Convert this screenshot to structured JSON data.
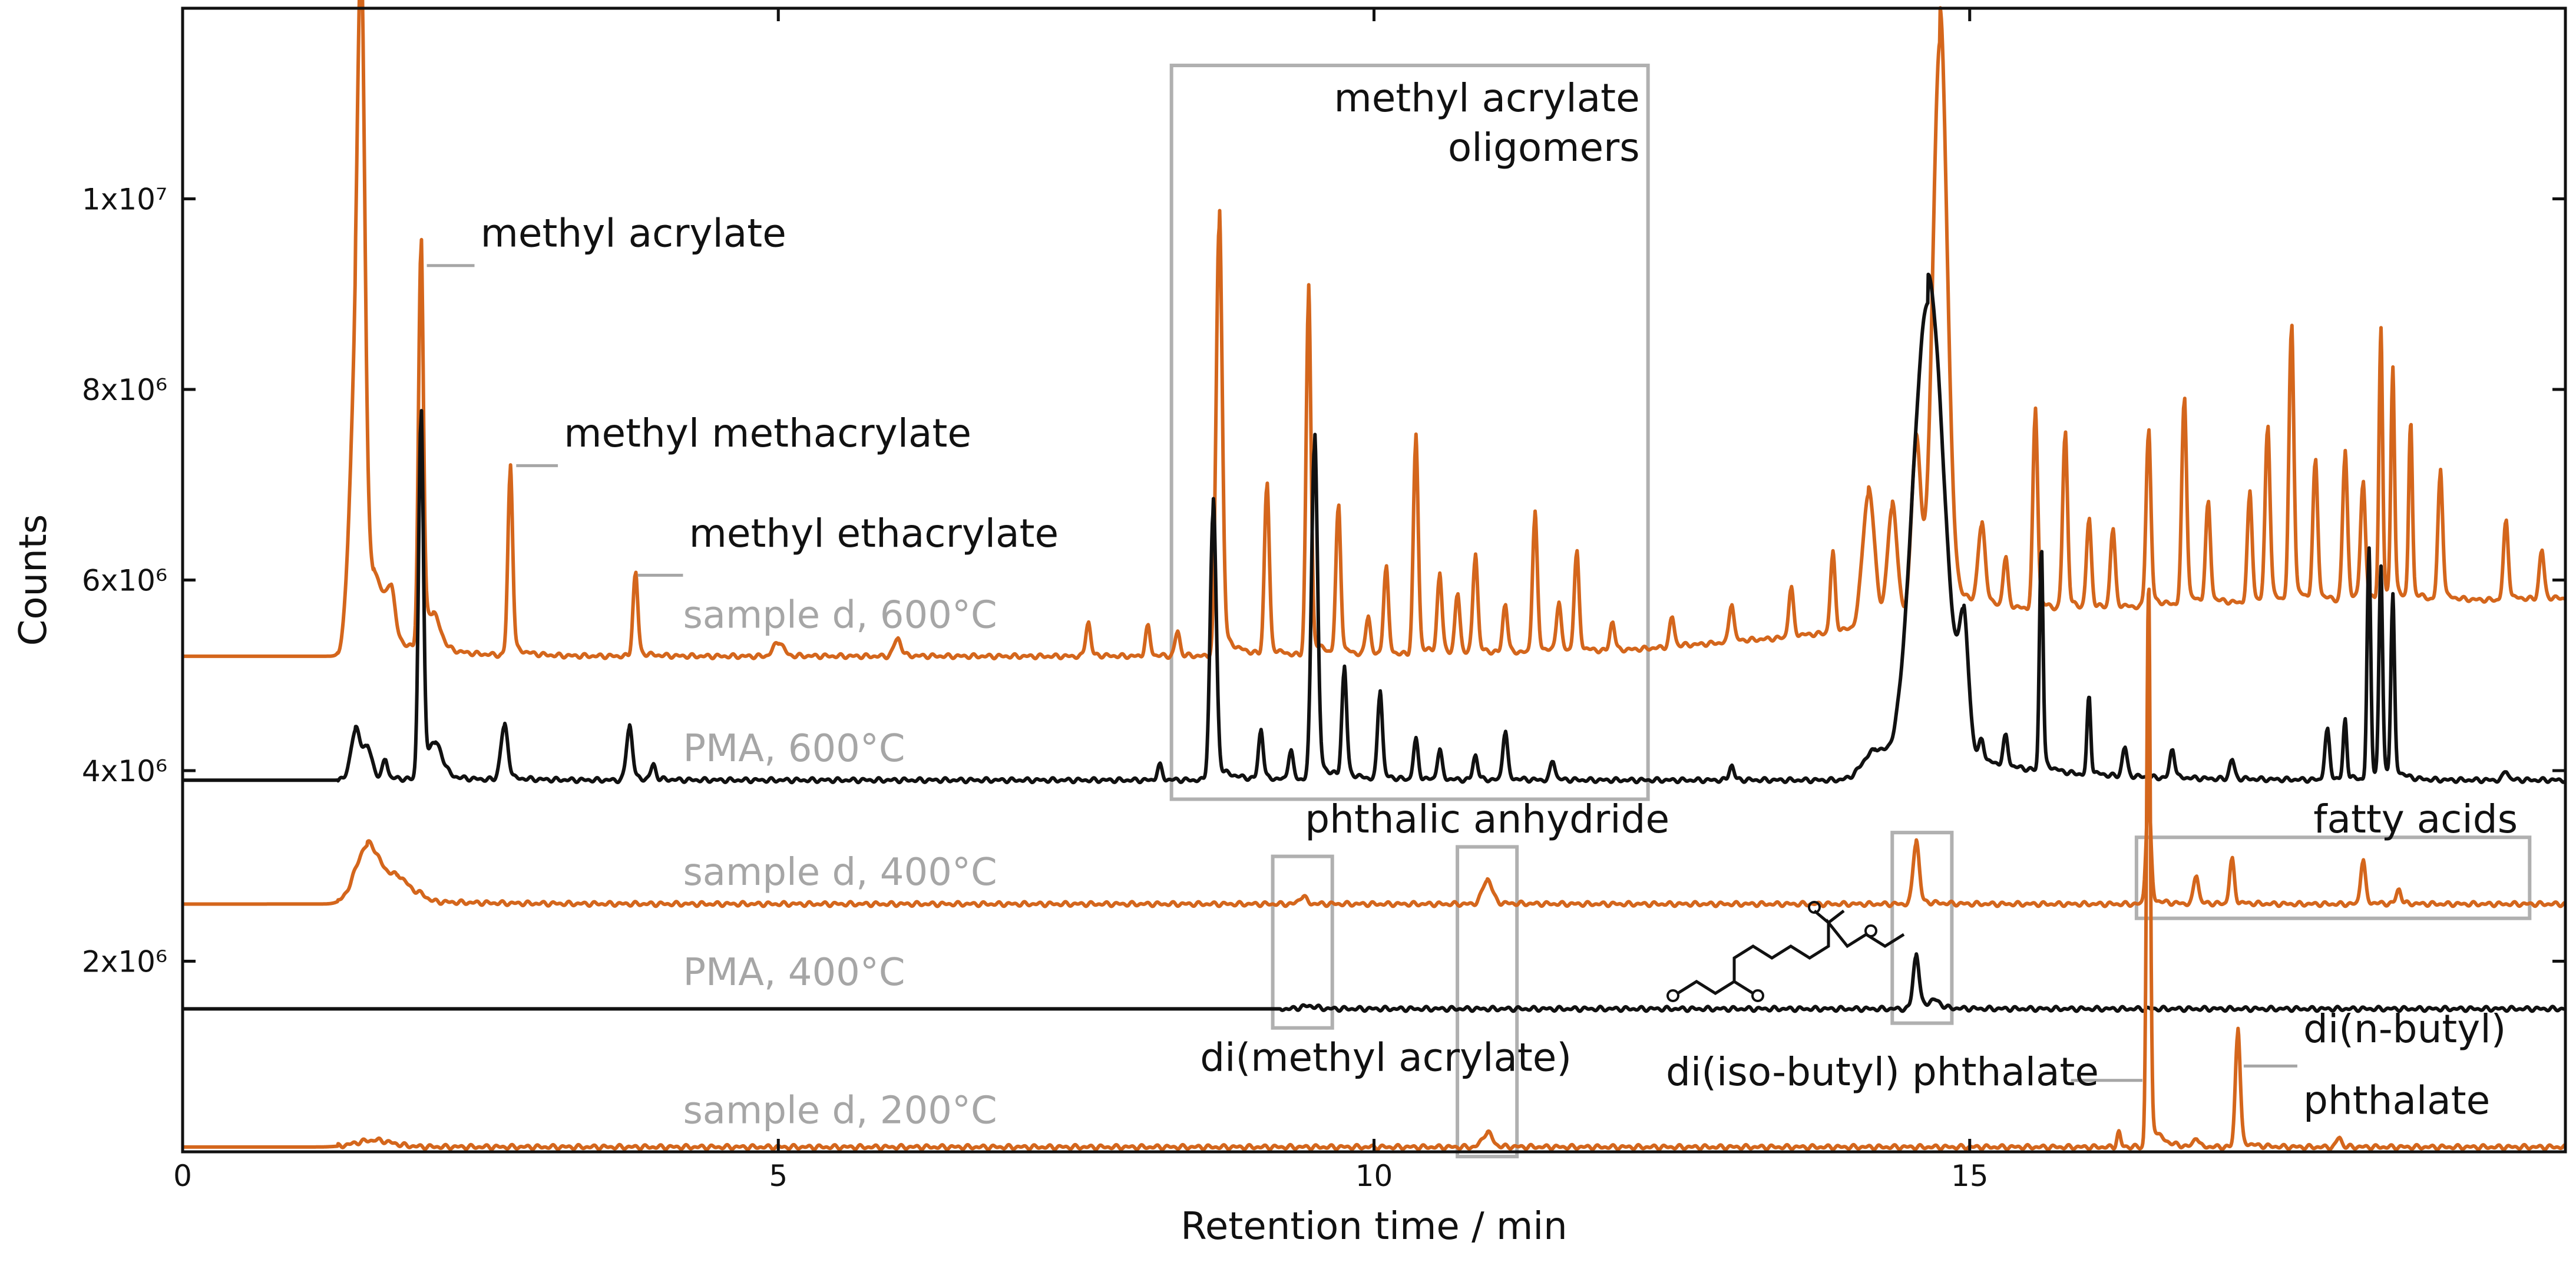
{
  "chart_data": {
    "type": "line",
    "xlabel": "Retention time / min",
    "ylabel": "Counts",
    "xlim": [
      0,
      20
    ],
    "ylim": [
      0,
      12000000
    ],
    "x_ticks": [
      0,
      5,
      10,
      15
    ],
    "x_tick_labels": [
      "0",
      "5",
      "10",
      "15"
    ],
    "y_ticks": [
      2000000,
      4000000,
      6000000,
      8000000,
      10000000
    ],
    "y_tick_labels": [
      "2x10⁶",
      "4x10⁶",
      "6x10⁶",
      "8x10⁶",
      "1x10⁷"
    ],
    "colors": {
      "orange": "#d4661c",
      "black": "#111111",
      "gray": "#a6a6a6",
      "box": "#b0b0b0"
    },
    "series": [
      {
        "name": "sample d, 600°C",
        "color": "#d4661c",
        "baseline": 5200000,
        "peaks": [
          [
            1.45,
            2600000,
            0.05
          ],
          [
            1.5,
            5100000,
            0.03
          ],
          [
            1.6,
            600000,
            0.1
          ],
          [
            1.75,
            400000,
            0.03
          ],
          [
            2.0,
            4100000,
            0.02
          ],
          [
            2.1,
            300000,
            0.06
          ],
          [
            2.75,
            1900000,
            0.02
          ],
          [
            3.8,
            850000,
            0.02
          ],
          [
            5.0,
            150000,
            0.04
          ],
          [
            6.0,
            180000,
            0.03
          ],
          [
            7.6,
            350000,
            0.02
          ],
          [
            8.1,
            300000,
            0.02
          ],
          [
            8.35,
            250000,
            0.02
          ],
          [
            8.7,
            4500000,
            0.025
          ],
          [
            9.1,
            1750000,
            0.02
          ],
          [
            9.45,
            3700000,
            0.02
          ],
          [
            9.7,
            1500000,
            0.02
          ],
          [
            9.95,
            400000,
            0.02
          ],
          [
            10.1,
            900000,
            0.02
          ],
          [
            10.35,
            2200000,
            0.02
          ],
          [
            10.55,
            800000,
            0.02
          ],
          [
            10.7,
            600000,
            0.02
          ],
          [
            10.85,
            1000000,
            0.02
          ],
          [
            11.1,
            500000,
            0.02
          ],
          [
            11.35,
            1400000,
            0.02
          ],
          [
            11.55,
            500000,
            0.02
          ],
          [
            11.7,
            1000000,
            0.02
          ],
          [
            12.0,
            300000,
            0.02
          ],
          [
            12.5,
            300000,
            0.02
          ],
          [
            13.0,
            400000,
            0.02
          ],
          [
            13.5,
            500000,
            0.02
          ],
          [
            13.85,
            800000,
            0.02
          ],
          [
            14.15,
            1400000,
            0.05
          ],
          [
            14.35,
            1200000,
            0.04
          ],
          [
            14.55,
            1800000,
            0.04
          ],
          [
            14.75,
            6000000,
            0.06
          ],
          [
            15.1,
            800000,
            0.03
          ],
          [
            15.3,
            500000,
            0.02
          ],
          [
            15.55,
            2000000,
            0.02
          ],
          [
            15.8,
            1800000,
            0.02
          ],
          [
            16.0,
            900000,
            0.02
          ],
          [
            16.2,
            800000,
            0.02
          ],
          [
            16.5,
            1800000,
            0.02
          ],
          [
            16.8,
            2100000,
            0.02
          ],
          [
            17.0,
            1000000,
            0.02
          ],
          [
            17.35,
            1100000,
            0.02
          ],
          [
            17.5,
            1800000,
            0.02
          ],
          [
            17.7,
            2800000,
            0.02
          ],
          [
            17.9,
            1400000,
            0.02
          ],
          [
            18.15,
            1500000,
            0.02
          ],
          [
            18.3,
            1200000,
            0.02
          ],
          [
            18.45,
            2700000,
            0.015
          ],
          [
            18.55,
            2300000,
            0.015
          ],
          [
            18.7,
            1800000,
            0.015
          ],
          [
            18.95,
            1300000,
            0.02
          ],
          [
            19.5,
            800000,
            0.02
          ],
          [
            19.8,
            500000,
            0.02
          ]
        ],
        "drift": [
          [
            0,
            0
          ],
          [
            10,
            0
          ],
          [
            12,
            50000
          ],
          [
            13.5,
            200000
          ],
          [
            15,
            400000
          ],
          [
            17,
            550000
          ],
          [
            20,
            600000
          ]
        ]
      },
      {
        "name": "PMA, 600°C",
        "color": "#111111",
        "baseline": 3900000,
        "peaks": [
          [
            1.45,
            500000,
            0.04
          ],
          [
            1.55,
            300000,
            0.04
          ],
          [
            1.7,
            200000,
            0.02
          ],
          [
            2.0,
            3700000,
            0.02
          ],
          [
            2.12,
            300000,
            0.06
          ],
          [
            2.7,
            550000,
            0.03
          ],
          [
            3.75,
            550000,
            0.025
          ],
          [
            3.95,
            150000,
            0.02
          ],
          [
            8.2,
            150000,
            0.02
          ],
          [
            8.65,
            2800000,
            0.025
          ],
          [
            9.05,
            500000,
            0.02
          ],
          [
            9.3,
            300000,
            0.02
          ],
          [
            9.5,
            3500000,
            0.025
          ],
          [
            9.75,
            1100000,
            0.02
          ],
          [
            10.05,
            900000,
            0.02
          ],
          [
            10.35,
            400000,
            0.02
          ],
          [
            10.55,
            300000,
            0.02
          ],
          [
            10.85,
            250000,
            0.02
          ],
          [
            11.1,
            500000,
            0.02
          ],
          [
            11.5,
            200000,
            0.02
          ],
          [
            13.0,
            150000,
            0.02
          ],
          [
            14.2,
            300000,
            0.1
          ],
          [
            14.65,
            5000000,
            0.13
          ],
          [
            14.95,
            1200000,
            0.04
          ],
          [
            15.1,
            200000,
            0.02
          ],
          [
            15.3,
            300000,
            0.02
          ],
          [
            15.6,
            2300000,
            0.015
          ],
          [
            16.0,
            800000,
            0.015
          ],
          [
            16.3,
            300000,
            0.02
          ],
          [
            16.7,
            300000,
            0.02
          ],
          [
            17.2,
            200000,
            0.02
          ],
          [
            18.0,
            500000,
            0.02
          ],
          [
            18.15,
            600000,
            0.015
          ],
          [
            18.35,
            2300000,
            0.015
          ],
          [
            18.45,
            2100000,
            0.015
          ],
          [
            18.55,
            1800000,
            0.015
          ],
          [
            19.5,
            100000,
            0.02
          ]
        ],
        "drift": [
          [
            0,
            0
          ],
          [
            20,
            0
          ]
        ]
      },
      {
        "name": "sample d, 400°C",
        "color": "#d4661c",
        "baseline": 2600000,
        "peaks": [
          [
            1.55,
            600000,
            0.1
          ],
          [
            1.8,
            250000,
            0.1
          ],
          [
            2.0,
            50000,
            0.05
          ],
          [
            9.4,
            80000,
            0.03
          ],
          [
            10.95,
            250000,
            0.04
          ],
          [
            14.55,
            650000,
            0.025
          ],
          [
            16.5,
            1100000,
            0.02
          ],
          [
            16.9,
            300000,
            0.02
          ],
          [
            17.2,
            450000,
            0.02
          ],
          [
            18.3,
            450000,
            0.02
          ],
          [
            18.6,
            150000,
            0.02
          ]
        ],
        "drift": [
          [
            0,
            0
          ],
          [
            20,
            0
          ]
        ]
      },
      {
        "name": "PMA, 400°C",
        "color": "#111111",
        "baseline": 1500000,
        "peaks": [
          [
            9.45,
            30000,
            0.06
          ],
          [
            14.55,
            550000,
            0.025
          ],
          [
            14.7,
            80000,
            0.05
          ]
        ],
        "drift": [
          [
            0,
            0
          ],
          [
            20,
            0
          ]
        ]
      },
      {
        "name": "sample d, 200°C",
        "color": "#d4661c",
        "baseline": 50000,
        "peaks": [
          [
            1.6,
            70000,
            0.15
          ],
          [
            10.95,
            150000,
            0.04
          ],
          [
            16.25,
            150000,
            0.015
          ],
          [
            16.5,
            5800000,
            0.015
          ],
          [
            16.9,
            100000,
            0.02
          ],
          [
            17.25,
            1200000,
            0.02
          ],
          [
            18.1,
            100000,
            0.02
          ]
        ],
        "drift": [
          [
            0,
            0
          ],
          [
            20,
            0
          ]
        ]
      }
    ],
    "trace_labels": [
      {
        "text": "sample d, 600°C",
        "x": 4.2,
        "y": 5500000
      },
      {
        "text": "PMA, 600°C",
        "x": 4.2,
        "y": 4100000
      },
      {
        "text": "sample d, 400°C",
        "x": 4.2,
        "y": 2800000
      },
      {
        "text": "PMA, 400°C",
        "x": 4.2,
        "y": 1750000
      },
      {
        "text": "sample d, 200°C",
        "x": 4.2,
        "y": 300000
      }
    ],
    "peak_annotations": [
      {
        "text": "methyl acrylate",
        "text_x": 2.5,
        "text_y": 9500000,
        "leader": [
          [
            2.05,
            9300000
          ],
          [
            2.45,
            9300000
          ]
        ]
      },
      {
        "text": "methyl methacrylate",
        "text_x": 3.2,
        "text_y": 7400000,
        "leader": [
          [
            2.8,
            7200000
          ],
          [
            3.15,
            7200000
          ]
        ]
      },
      {
        "text": "methyl ethacrylate",
        "text_x": 4.25,
        "text_y": 6350000,
        "leader": [
          [
            3.82,
            6050000
          ],
          [
            4.2,
            6050000
          ]
        ]
      },
      {
        "text": "di(n-butyl)",
        "text_x": 17.8,
        "text_y": 1150000,
        "leader": [
          [
            17.3,
            900000
          ],
          [
            17.75,
            900000
          ]
        ]
      },
      {
        "text": "phthalate",
        "text_x": 17.8,
        "text_y": 400000,
        "leader": []
      },
      {
        "text": "di(iso-butyl) phthalate",
        "text_x": 12.45,
        "text_y": 700000,
        "leader": [
          [
            15.85,
            750000
          ],
          [
            16.45,
            750000
          ]
        ]
      }
    ],
    "boxes": [
      {
        "label": "methyl acrylate oligomers",
        "label_lines": [
          "methyl acrylate",
          "oligomers"
        ],
        "x0": 8.3,
        "x1": 12.3,
        "y0": 3700000,
        "y1": 11400000,
        "label_anchor": "end"
      },
      {
        "label": "di(methyl acrylate)",
        "x0": 9.15,
        "x1": 9.65,
        "y0": 1300000,
        "y1": 3100000,
        "label_x": 10.1,
        "label_y": 850000
      },
      {
        "label": "phthalic anhydride",
        "x0": 10.7,
        "x1": 11.2,
        "y0": -50000,
        "y1": 3200000,
        "label_x": 10.95,
        "label_y": 3350000
      },
      {
        "label": "",
        "x0": 14.35,
        "x1": 14.85,
        "y0": 1350000,
        "y1": 3350000
      },
      {
        "label": "fatty acids",
        "x0": 16.4,
        "x1": 19.7,
        "y0": 2450000,
        "y1": 3300000,
        "label_x": 19.6,
        "label_y": 3350000,
        "label_anchor": "end"
      }
    ]
  }
}
